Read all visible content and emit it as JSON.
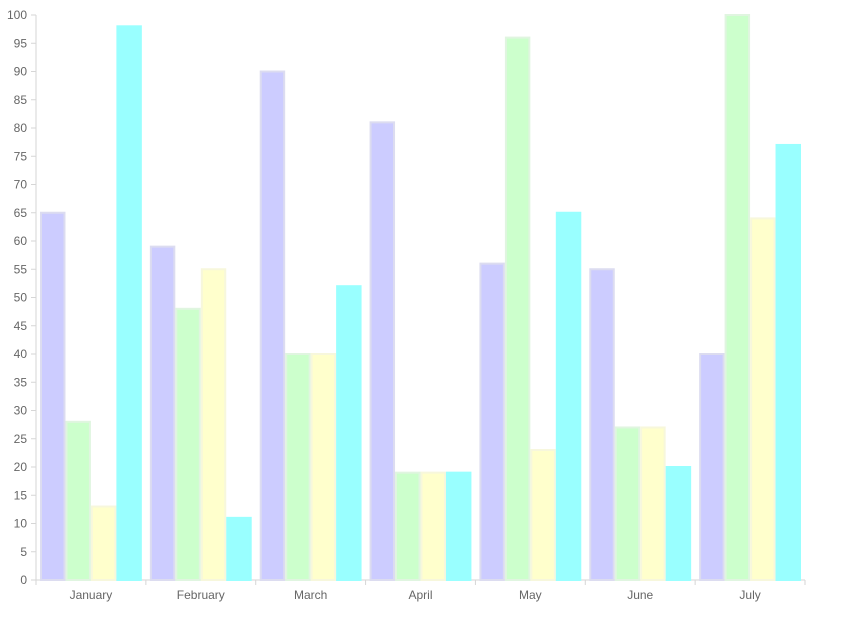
{
  "chart_data": {
    "type": "bar",
    "title": "",
    "xlabel": "",
    "ylabel": "",
    "categories": [
      "January",
      "February",
      "March",
      "April",
      "May",
      "June",
      "July"
    ],
    "ylim": [
      0,
      100
    ],
    "ytick_step": 5,
    "grid": false,
    "legend": "none",
    "series": [
      {
        "values": [
          65,
          59,
          90,
          81,
          56,
          55,
          40
        ],
        "fill": "#ccccff",
        "stroke": "#dcdcf0"
      },
      {
        "values": [
          28,
          48,
          40,
          19,
          96,
          27,
          100
        ],
        "fill": "#ccffcc",
        "stroke": "#e0f5e0"
      },
      {
        "values": [
          13,
          55,
          40,
          19,
          23,
          27,
          64
        ],
        "fill": "#ffffcc",
        "stroke": "#f7f7dc"
      },
      {
        "values": [
          98,
          11,
          52,
          19,
          65,
          20,
          77
        ],
        "fill": "#99ffff",
        "stroke": "#99ffff"
      }
    ]
  }
}
